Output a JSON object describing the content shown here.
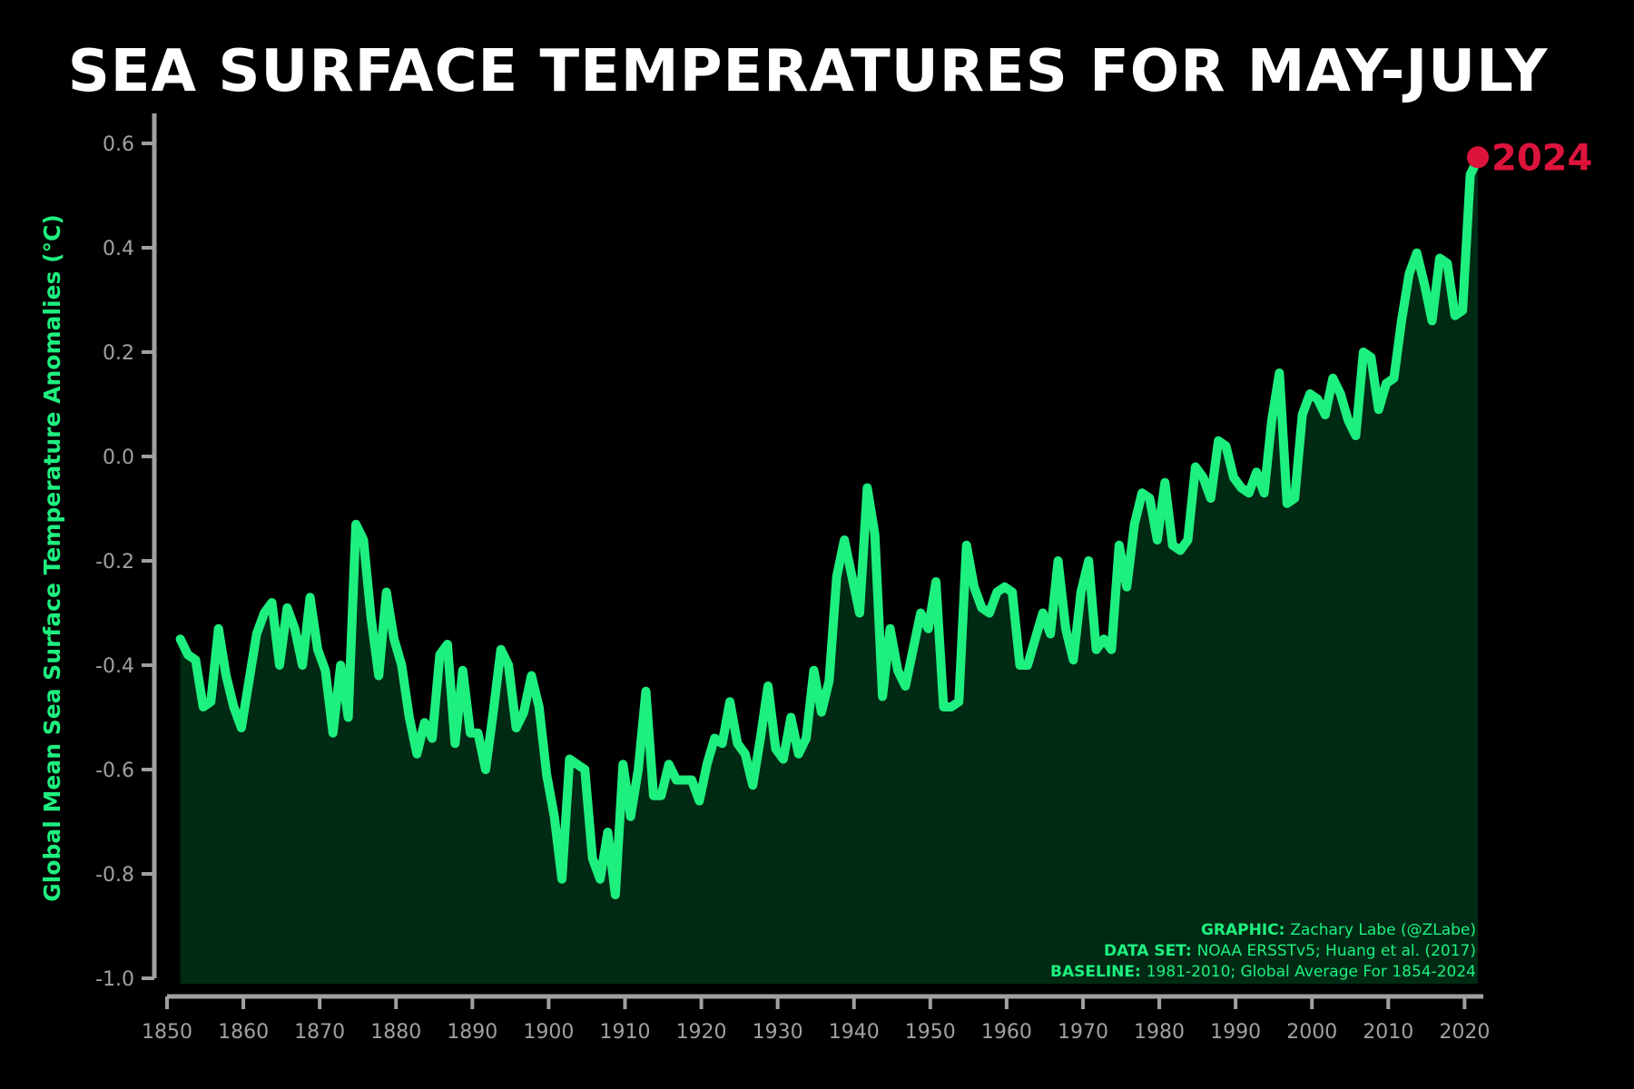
{
  "colors": {
    "background": "#000000",
    "line": "#1ef07f",
    "fill": "#002a14",
    "axis": "#a0a0a0",
    "highlight": "#dc143c",
    "title": "#ffffff"
  },
  "chart_data": {
    "type": "area",
    "title": "SEA SURFACE TEMPERATURES FOR MAY-JULY",
    "xlabel": "",
    "ylabel": "Global Mean Sea Surface Temperature Anomalies (°C)",
    "xlim": [
      1850,
      2024
    ],
    "ylim": [
      -1.0,
      0.6
    ],
    "xticks": [
      1850,
      1860,
      1870,
      1880,
      1890,
      1900,
      1910,
      1920,
      1930,
      1940,
      1950,
      1960,
      1970,
      1980,
      1990,
      2000,
      2010,
      2020
    ],
    "yticks": [
      0.6,
      0.4,
      0.2,
      0.0,
      -0.2,
      -0.4,
      -0.6,
      -0.8,
      -1.0
    ],
    "ytick_labels": [
      "0.6",
      "0.4",
      "0.2",
      "0.0",
      "-0.2",
      "-0.4",
      "-0.6",
      "-0.8",
      "-1.0"
    ],
    "grid": false,
    "series": [
      {
        "x": [
          1854,
          1855,
          1856,
          1857,
          1858,
          1859,
          1860,
          1861,
          1862,
          1863,
          1864,
          1865,
          1866,
          1867,
          1868,
          1869,
          1870,
          1871,
          1872,
          1873,
          1874,
          1875,
          1876,
          1877,
          1878,
          1879,
          1880,
          1881,
          1882,
          1883,
          1884,
          1885,
          1886,
          1887,
          1888,
          1889,
          1890,
          1891,
          1892,
          1893,
          1894,
          1895,
          1896,
          1897,
          1898,
          1899,
          1900,
          1901,
          1902,
          1903,
          1904,
          1905,
          1906,
          1907,
          1908,
          1909,
          1910,
          1911,
          1912,
          1913,
          1914,
          1915,
          1916,
          1917,
          1918,
          1919,
          1920,
          1921,
          1922,
          1923,
          1924,
          1925,
          1926,
          1927,
          1928,
          1929,
          1930,
          1931,
          1932,
          1933,
          1934,
          1935,
          1936,
          1937,
          1938,
          1939,
          1940,
          1941,
          1942,
          1943,
          1944,
          1945,
          1946,
          1947,
          1948,
          1949,
          1950,
          1951,
          1952,
          1953,
          1954,
          1955,
          1956,
          1957,
          1958,
          1959,
          1960,
          1961,
          1962,
          1963,
          1964,
          1965,
          1966,
          1967,
          1968,
          1969,
          1970,
          1971,
          1972,
          1973,
          1974,
          1975,
          1976,
          1977,
          1978,
          1979,
          1980,
          1981,
          1982,
          1983,
          1984,
          1985,
          1986,
          1987,
          1988,
          1989,
          1990,
          1991,
          1992,
          1993,
          1994,
          1995,
          1996,
          1997,
          1998,
          1999,
          2000,
          2001,
          2002,
          2003,
          2004,
          2005,
          2006,
          2007,
          2008,
          2009,
          2010,
          2011,
          2012,
          2013,
          2014,
          2015,
          2016,
          2017,
          2018,
          2019,
          2020,
          2021,
          2022,
          2023,
          2024
        ],
        "values": [
          -0.35,
          -0.38,
          -0.39,
          -0.48,
          -0.47,
          -0.33,
          -0.42,
          -0.48,
          -0.52,
          -0.43,
          -0.34,
          -0.3,
          -0.28,
          -0.4,
          -0.29,
          -0.33,
          -0.4,
          -0.27,
          -0.37,
          -0.41,
          -0.53,
          -0.4,
          -0.5,
          -0.13,
          -0.16,
          -0.31,
          -0.42,
          -0.26,
          -0.35,
          -0.4,
          -0.5,
          -0.57,
          -0.51,
          -0.54,
          -0.38,
          -0.36,
          -0.55,
          -0.41,
          -0.53,
          -0.53,
          -0.6,
          -0.49,
          -0.37,
          -0.4,
          -0.52,
          -0.49,
          -0.42,
          -0.48,
          -0.61,
          -0.69,
          -0.81,
          -0.58,
          -0.59,
          -0.6,
          -0.77,
          -0.81,
          -0.72,
          -0.84,
          -0.59,
          -0.69,
          -0.6,
          -0.45,
          -0.65,
          -0.65,
          -0.59,
          -0.62,
          -0.62,
          -0.62,
          -0.66,
          -0.59,
          -0.54,
          -0.55,
          -0.47,
          -0.55,
          -0.57,
          -0.63,
          -0.54,
          -0.44,
          -0.56,
          -0.58,
          -0.5,
          -0.57,
          -0.54,
          -0.41,
          -0.49,
          -0.43,
          -0.23,
          -0.16,
          -0.23,
          -0.3,
          -0.06,
          -0.15,
          -0.46,
          -0.33,
          -0.41,
          -0.44,
          -0.37,
          -0.3,
          -0.33,
          -0.24,
          -0.48,
          -0.48,
          -0.47,
          -0.17,
          -0.25,
          -0.29,
          -0.3,
          -0.26,
          -0.25,
          -0.26,
          -0.4,
          -0.4,
          -0.35,
          -0.3,
          -0.34,
          -0.2,
          -0.33,
          -0.39,
          -0.26,
          -0.2,
          -0.37,
          -0.35,
          -0.37,
          -0.17,
          -0.25,
          -0.13,
          -0.07,
          -0.08,
          -0.16,
          -0.05,
          -0.17,
          -0.18,
          -0.16,
          -0.02,
          -0.04,
          -0.08,
          0.03,
          0.02,
          -0.04,
          -0.06,
          -0.07,
          -0.03,
          -0.07,
          0.07,
          0.16,
          -0.09,
          -0.08,
          0.08,
          0.12,
          0.11,
          0.08,
          0.15,
          0.12,
          0.07,
          0.04,
          0.2,
          0.19,
          0.09,
          0.14,
          0.15,
          0.26,
          0.35,
          0.39,
          0.33,
          0.26,
          0.38,
          0.37,
          0.27,
          0.28,
          0.54,
          0.57
        ]
      }
    ],
    "highlight": {
      "label": "2024",
      "x": 2024,
      "y": 0.57
    },
    "annotations": [
      {
        "key": "GRAPHIC:",
        "value": "Zachary Labe (@ZLabe)"
      },
      {
        "key": "DATA SET:",
        "value": "NOAA ERSSTv5; Huang et al. (2017)"
      },
      {
        "key": "BASELINE:",
        "value": "1981-2010; Global Average For 1854-2024"
      }
    ]
  }
}
